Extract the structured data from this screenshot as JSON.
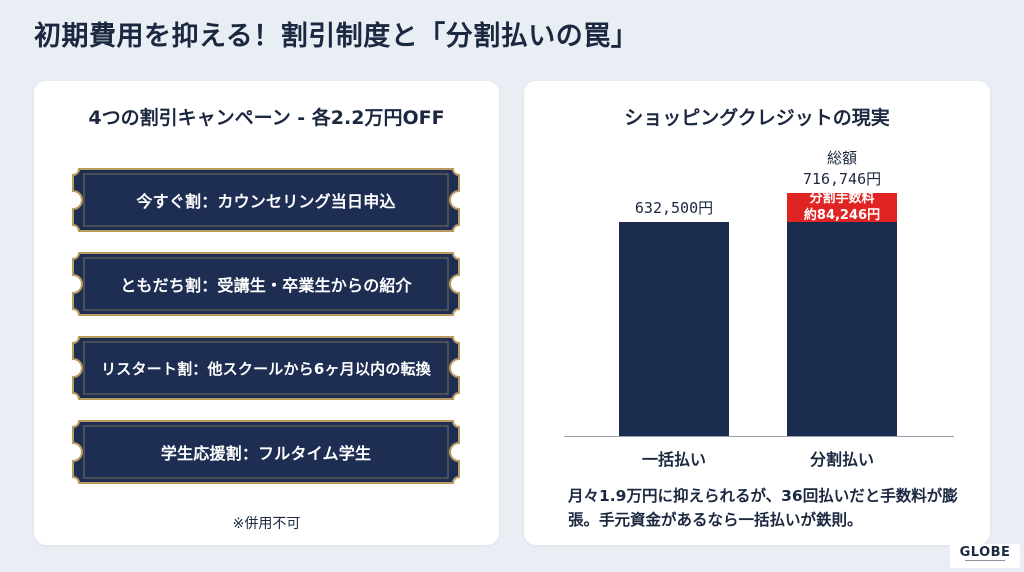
{
  "title": "初期費用を抑える！割引制度と「分割払いの罠」",
  "left_card": {
    "title": "4つの割引キャンペーン - 各2.2万円OFF",
    "campaigns": [
      "今すぐ割：カウンセリング当日申込",
      "ともだち割：受講生・卒業生からの紹介",
      "リスタート割：他スクールから6ヶ月以内の転換",
      "学生応援割：フルタイム学生"
    ],
    "note": "※併用不可"
  },
  "right_card": {
    "title": "ショッピングクレジットの現実",
    "chart_data": {
      "type": "bar",
      "categories": [
        "一括払い",
        "分割払い"
      ],
      "series": [
        {
          "name": "",
          "values": [
            632500,
            632500
          ]
        },
        {
          "name": "分割手数料",
          "values": [
            0,
            84246
          ]
        }
      ],
      "labels": {
        "lump_sum_value": "632,500円",
        "total_caption": "総額",
        "total_value": "716,746円",
        "fee_label": "分割手数料",
        "fee_value": "約84,246円"
      },
      "colors": {
        "base": "#1a2b4e",
        "fee": "#e02424"
      }
    },
    "summary": "月々1.9万円に抑えられるが、36回払いだと手数料が膨張。手元資金があるなら一括払いが鉄則。"
  },
  "logo": {
    "text": "GLOBE"
  }
}
